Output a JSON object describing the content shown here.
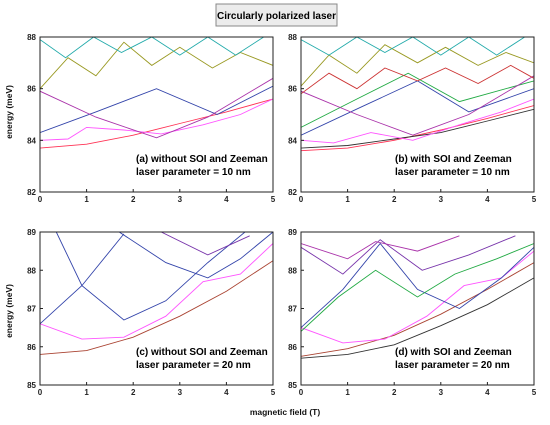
{
  "figure": {
    "title": "Circularly polarized laser",
    "xlabel": "magnetic field (T)",
    "ylabel": "energy (meV)"
  },
  "chart_data": [
    {
      "type": "line",
      "panel": "a",
      "annotation": [
        "(a) without SOI and Zeeman",
        "laser parameter = 10 nm"
      ],
      "xlim": [
        0,
        5
      ],
      "ylim": [
        82,
        88
      ],
      "xticks": [
        "0",
        "1",
        "2",
        "3",
        "4",
        "5"
      ],
      "yticks": [
        "82",
        "84",
        "86",
        "88"
      ],
      "series": [
        {
          "color": "#ff3355",
          "points": [
            [
              0,
              83.7
            ],
            [
              1,
              83.85
            ],
            [
              2,
              84.2
            ],
            [
              3,
              84.65
            ],
            [
              4,
              85.1
            ],
            [
              5,
              85.6
            ]
          ]
        },
        {
          "color": "#ff55ff",
          "points": [
            [
              0,
              84.0
            ],
            [
              0.6,
              84.05
            ],
            [
              1,
              84.5
            ],
            [
              1.8,
              84.4
            ],
            [
              2.6,
              84.25
            ],
            [
              3.5,
              84.6
            ],
            [
              4.3,
              85.0
            ],
            [
              5,
              85.6
            ]
          ]
        },
        {
          "color": "#3344aa",
          "points": [
            [
              0,
              84.3
            ],
            [
              1.2,
              85.1
            ],
            [
              2.5,
              86.0
            ],
            [
              3.8,
              85.0
            ],
            [
              5,
              86.1
            ]
          ]
        },
        {
          "color": "#aa33aa",
          "points": [
            [
              0,
              85.9
            ],
            [
              1.2,
              84.9
            ],
            [
              2.5,
              84.1
            ],
            [
              3.6,
              84.9
            ],
            [
              5,
              86.4
            ]
          ]
        },
        {
          "color": "#999922",
          "points": [
            [
              0,
              86.0
            ],
            [
              0.6,
              87.2
            ],
            [
              1.2,
              86.5
            ],
            [
              1.8,
              87.8
            ],
            [
              2.4,
              86.9
            ],
            [
              3.0,
              87.6
            ],
            [
              3.7,
              86.8
            ],
            [
              4.3,
              87.4
            ],
            [
              5,
              86.9
            ]
          ]
        },
        {
          "color": "#22aaaa",
          "points": [
            [
              0,
              87.9
            ],
            [
              0.55,
              87.2
            ],
            [
              1.15,
              88.0
            ],
            [
              1.75,
              87.4
            ],
            [
              2.4,
              88.0
            ],
            [
              3.0,
              87.3
            ],
            [
              3.6,
              88.0
            ],
            [
              4.2,
              87.3
            ],
            [
              4.8,
              88.0
            ]
          ]
        }
      ]
    },
    {
      "type": "line",
      "panel": "b",
      "annotation": [
        "(b) with SOI and Zeeman",
        "laser parameter = 10 nm"
      ],
      "xlim": [
        0,
        5
      ],
      "ylim": [
        82,
        88
      ],
      "xticks": [
        "0",
        "1",
        "2",
        "3",
        "4",
        "5"
      ],
      "yticks": [
        "82",
        "84",
        "86",
        "88"
      ],
      "series": [
        {
          "color": "#ff3355",
          "points": [
            [
              0,
              83.6
            ],
            [
              1,
              83.7
            ],
            [
              2,
              84.0
            ],
            [
              3,
              84.4
            ],
            [
              4,
              84.85
            ],
            [
              5,
              85.35
            ]
          ]
        },
        {
          "color": "#333333",
          "points": [
            [
              0,
              83.7
            ],
            [
              1,
              83.8
            ],
            [
              2,
              84.05
            ],
            [
              3,
              84.3
            ],
            [
              4,
              84.75
            ],
            [
              5,
              85.2
            ]
          ]
        },
        {
          "color": "#ff55ff",
          "points": [
            [
              0,
              84.0
            ],
            [
              0.7,
              83.9
            ],
            [
              1.5,
              84.3
            ],
            [
              2.4,
              84.0
            ],
            [
              3.4,
              84.6
            ],
            [
              4.3,
              85.1
            ],
            [
              5,
              85.6
            ]
          ]
        },
        {
          "color": "#3344aa",
          "points": [
            [
              0,
              84.2
            ],
            [
              1.3,
              85.3
            ],
            [
              2.5,
              86.3
            ],
            [
              3.6,
              85.1
            ],
            [
              5,
              86.0
            ]
          ]
        },
        {
          "color": "#22aa44",
          "points": [
            [
              0,
              84.5
            ],
            [
              1.2,
              85.6
            ],
            [
              2.3,
              86.6
            ],
            [
              3.4,
              85.5
            ],
            [
              5,
              86.3
            ]
          ]
        },
        {
          "color": "#aa33aa",
          "points": [
            [
              0,
              85.9
            ],
            [
              1.2,
              85.0
            ],
            [
              2.4,
              84.2
            ],
            [
              3.6,
              85.0
            ],
            [
              5,
              86.5
            ]
          ]
        },
        {
          "color": "#cc3333",
          "points": [
            [
              0,
              85.8
            ],
            [
              0.6,
              86.6
            ],
            [
              1.2,
              86.0
            ],
            [
              1.8,
              86.8
            ],
            [
              2.5,
              86.3
            ],
            [
              3.1,
              86.8
            ],
            [
              3.8,
              86.2
            ],
            [
              4.5,
              86.9
            ],
            [
              5,
              86.4
            ]
          ]
        },
        {
          "color": "#999922",
          "points": [
            [
              0,
              86.1
            ],
            [
              0.6,
              87.3
            ],
            [
              1.2,
              86.6
            ],
            [
              1.8,
              87.7
            ],
            [
              2.5,
              87.0
            ],
            [
              3.1,
              87.6
            ],
            [
              3.8,
              86.9
            ],
            [
              4.4,
              87.4
            ],
            [
              5,
              87.0
            ]
          ]
        },
        {
          "color": "#22aaaa",
          "points": [
            [
              0,
              87.9
            ],
            [
              0.6,
              87.3
            ],
            [
              1.2,
              88.0
            ],
            [
              1.8,
              87.4
            ],
            [
              2.4,
              88.0
            ],
            [
              3.0,
              87.3
            ],
            [
              3.6,
              88.0
            ],
            [
              4.2,
              87.3
            ],
            [
              4.8,
              88.0
            ]
          ]
        }
      ]
    },
    {
      "type": "line",
      "panel": "c",
      "annotation": [
        "(c) without SOI and Zeeman",
        "laser parameter = 20 nm"
      ],
      "xlim": [
        0,
        5
      ],
      "ylim": [
        85,
        89
      ],
      "xticks": [
        "0",
        "1",
        "2",
        "3",
        "4",
        "5"
      ],
      "yticks": [
        "85",
        "86",
        "87",
        "88",
        "89"
      ],
      "series": [
        {
          "color": "#aa4433",
          "points": [
            [
              0,
              85.8
            ],
            [
              1,
              85.9
            ],
            [
              2,
              86.25
            ],
            [
              3,
              86.8
            ],
            [
              4,
              87.45
            ],
            [
              5,
              88.25
            ]
          ]
        },
        {
          "color": "#ff55ff",
          "points": [
            [
              0,
              86.6
            ],
            [
              0.9,
              86.2
            ],
            [
              1.8,
              86.25
            ],
            [
              2.7,
              86.8
            ],
            [
              3.5,
              87.7
            ],
            [
              4.3,
              87.9
            ],
            [
              5,
              88.7
            ]
          ]
        },
        {
          "color": "#3344aa",
          "points": [
            [
              0,
              86.6
            ],
            [
              0.9,
              87.6
            ],
            [
              1.8,
              88.95
            ]
          ]
        },
        {
          "color": "#3344aa",
          "points": [
            [
              0.35,
              89.0
            ],
            [
              0.9,
              87.6
            ],
            [
              1.8,
              86.7
            ],
            [
              2.7,
              87.2
            ],
            [
              3.6,
              88.2
            ],
            [
              4.4,
              89.0
            ]
          ]
        },
        {
          "color": "#3344aa",
          "points": [
            [
              1.7,
              89.0
            ],
            [
              2.7,
              88.2
            ],
            [
              3.6,
              87.8
            ],
            [
              4.3,
              88.3
            ],
            [
              5,
              89.0
            ]
          ]
        },
        {
          "color": "#7733aa",
          "points": [
            [
              2.6,
              89.0
            ],
            [
              3.6,
              88.4
            ],
            [
              4.5,
              88.9
            ]
          ]
        }
      ]
    },
    {
      "type": "line",
      "panel": "d",
      "annotation": [
        "(d) with SOI and Zeeman",
        "laser parameter = 20 nm"
      ],
      "xlim": [
        0,
        5
      ],
      "ylim": [
        85,
        89
      ],
      "xticks": [
        "0",
        "1",
        "2",
        "3",
        "4",
        "5"
      ],
      "yticks": [
        "85",
        "86",
        "87",
        "88",
        "89"
      ],
      "series": [
        {
          "color": "#333333",
          "points": [
            [
              0,
              85.7
            ],
            [
              1,
              85.8
            ],
            [
              2,
              86.05
            ],
            [
              3,
              86.55
            ],
            [
              4,
              87.1
            ],
            [
              5,
              87.8
            ]
          ]
        },
        {
          "color": "#aa4433",
          "points": [
            [
              0,
              85.75
            ],
            [
              1,
              85.95
            ],
            [
              2,
              86.3
            ],
            [
              3,
              86.85
            ],
            [
              4,
              87.5
            ],
            [
              5,
              88.2
            ]
          ]
        },
        {
          "color": "#ff55ff",
          "points": [
            [
              0,
              86.5
            ],
            [
              0.9,
              86.1
            ],
            [
              1.8,
              86.2
            ],
            [
              2.7,
              86.8
            ],
            [
              3.5,
              87.6
            ],
            [
              4.3,
              87.8
            ],
            [
              5,
              88.5
            ]
          ]
        },
        {
          "color": "#3344aa",
          "points": [
            [
              0,
              86.5
            ],
            [
              0.9,
              87.5
            ],
            [
              1.7,
              88.7
            ],
            [
              2.5,
              87.5
            ],
            [
              3.4,
              87.0
            ],
            [
              4.3,
              87.8
            ],
            [
              5,
              88.6
            ]
          ]
        },
        {
          "color": "#22aa44",
          "points": [
            [
              0,
              86.4
            ],
            [
              0.8,
              87.3
            ],
            [
              1.6,
              88.0
            ],
            [
              2.5,
              87.3
            ],
            [
              3.3,
              87.9
            ],
            [
              4.2,
              88.3
            ],
            [
              5,
              88.7
            ]
          ]
        },
        {
          "color": "#7733aa",
          "points": [
            [
              0,
              88.6
            ],
            [
              0.9,
              87.9
            ],
            [
              1.7,
              88.8
            ],
            [
              2.6,
              88.0
            ],
            [
              3.6,
              88.4
            ],
            [
              4.6,
              88.9
            ]
          ]
        },
        {
          "color": "#aa33aa",
          "points": [
            [
              0,
              88.7
            ],
            [
              1.0,
              88.3
            ],
            [
              1.6,
              88.75
            ],
            [
              2.5,
              88.5
            ],
            [
              3.4,
              88.9
            ]
          ]
        }
      ]
    }
  ]
}
